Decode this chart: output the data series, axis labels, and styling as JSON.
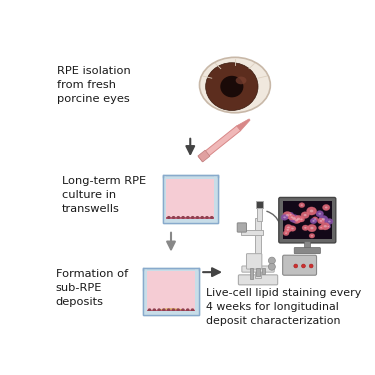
{
  "bg_color": "#ffffff",
  "labels": {
    "step1": "RPE isolation\nfrom fresh\nporcine eyes",
    "step2": "Long-term RPE\nculture in\ntranswells",
    "step3": "Formation of\nsub-RPE\ndeposits",
    "step4": "Live-cell lipid staining every\n4 weeks for longitudinal\ndeposit characterization"
  },
  "colors": {
    "eye_iris": "#5c2d1e",
    "eye_pupil": "#1a0a08",
    "eye_sclera": "#f0e8de",
    "eye_edge": "#c8b8a8",
    "pipette_body": "#f0b8b8",
    "pipette_tip": "#d88888",
    "beaker_wall": "#b8d0e0",
    "beaker_liquid": "#f5ccd4",
    "cell_layer": "#b85870",
    "cell_bump": "#904050",
    "deposit_color": "#d4a84b",
    "deposit_light": "#e8c878",
    "arrow_color": "#444444",
    "text_color": "#1a1a1a",
    "monitor_bg": "#120818",
    "monitor_frame": "#555555",
    "cell_pink": "#e06878",
    "cell_purple": "#8850a8",
    "mic_body": "#e0e0e0",
    "mic_dark": "#aaaaaa",
    "mic_black": "#444444"
  },
  "layout": {
    "fig_width": 3.75,
    "fig_height": 3.75,
    "dpi": 100
  }
}
